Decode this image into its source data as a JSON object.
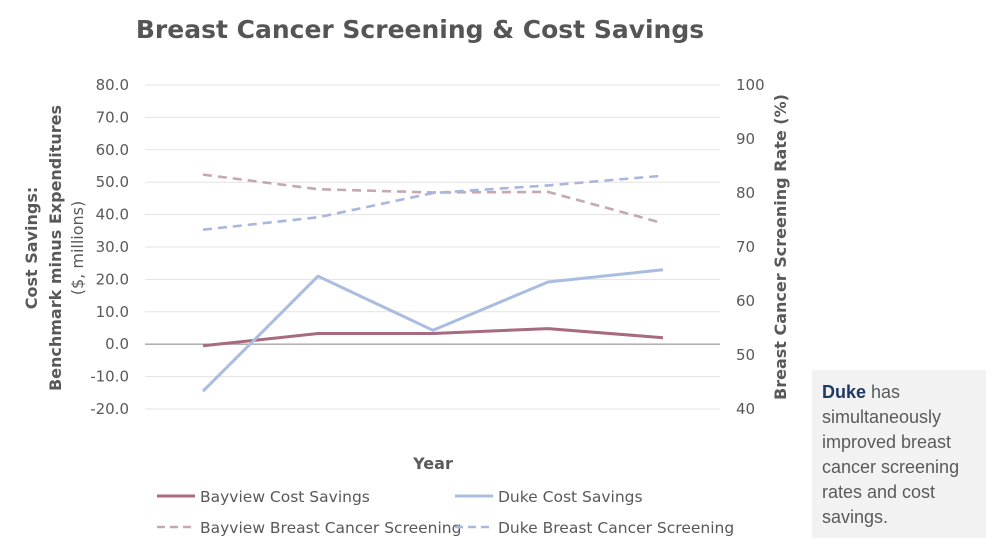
{
  "chart_data": {
    "type": "line",
    "title": "Breast Cancer Screening & Cost Savings",
    "xlabel": "Year",
    "ylabel_left": [
      "Cost Savings:",
      "Benchmark minus Expenditures",
      "($, millions)"
    ],
    "ylabel_right": "Breast Cancer Screening Rate (%)",
    "x": [
      1,
      2,
      3,
      4,
      5
    ],
    "x_tick_labels": [],
    "ylim_left": [
      -20,
      80
    ],
    "yticks_left": [
      "80.0",
      "70.0",
      "60.0",
      "50.0",
      "40.0",
      "30.0",
      "20.0",
      "10.0",
      "0.0",
      "-10.0",
      "-20.0"
    ],
    "ylim_right": [
      40,
      100
    ],
    "yticks_right": [
      "100",
      "90",
      "80",
      "70",
      "60",
      "50",
      "40"
    ],
    "grid": true,
    "legend_position": "bottom",
    "series": [
      {
        "name": "Bayview Cost Savings",
        "axis": "left",
        "style": "solid",
        "color": "#a86a7f",
        "values": [
          -0.5,
          3.3,
          3.3,
          4.8,
          2.0
        ]
      },
      {
        "name": "Duke Cost Savings",
        "axis": "left",
        "style": "solid",
        "color": "#a9bde0",
        "values": [
          -14.5,
          21.0,
          4.3,
          19.2,
          23.0
        ]
      },
      {
        "name": "Bayview Breast Cancer Screening",
        "axis": "right",
        "style": "dashed",
        "color": "#c4a9b2",
        "values": [
          83.4,
          80.7,
          80.1,
          80.2,
          74.4
        ]
      },
      {
        "name": "Duke Breast Cancer Screening",
        "axis": "right",
        "style": "dashed",
        "color": "#a9b6dd",
        "values": [
          73.2,
          75.5,
          80.0,
          81.4,
          83.2
        ]
      }
    ]
  },
  "callout": {
    "highlight": "Duke",
    "text": " has simultaneously improved breast cancer screening rates and cost savings.",
    "highlight_color": "#1f3864"
  }
}
